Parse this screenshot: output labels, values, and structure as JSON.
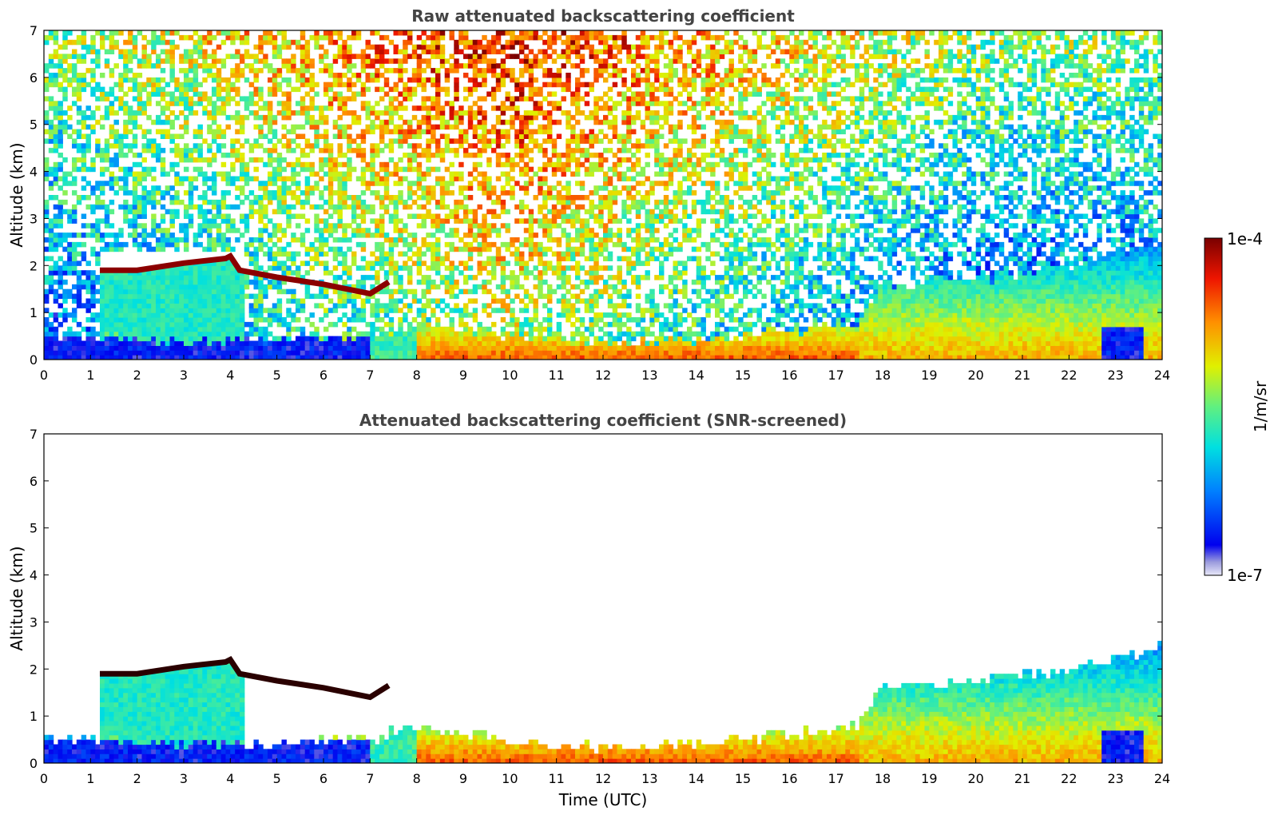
{
  "chart_data": [
    {
      "type": "heatmap",
      "title": "Raw attenuated backscattering coefficient",
      "ylabel": "Altitude (km)",
      "xlabel": "",
      "xlim": [
        0,
        24
      ],
      "ylim": [
        0,
        7
      ],
      "xticks": [
        0,
        1,
        2,
        3,
        4,
        5,
        6,
        7,
        8,
        9,
        10,
        11,
        12,
        13,
        14,
        15,
        16,
        17,
        18,
        19,
        20,
        21,
        22,
        23,
        24
      ],
      "yticks": [
        0,
        1,
        2,
        3,
        4,
        5,
        6,
        7
      ],
      "screened": false,
      "features": {
        "cloud_layer_km": [
          [
            1.2,
            1.9
          ],
          [
            2.0,
            1.9
          ],
          [
            3.0,
            2.05
          ],
          [
            3.9,
            2.15
          ],
          [
            4.0,
            2.2
          ],
          [
            4.2,
            1.9
          ],
          [
            5.0,
            1.75
          ],
          [
            6.0,
            1.6
          ],
          [
            7.0,
            1.4
          ],
          [
            7.4,
            1.65
          ]
        ],
        "boundary_layer_top_km": [
          [
            0,
            0.55
          ],
          [
            2,
            0.45
          ],
          [
            4,
            0.4
          ],
          [
            7,
            0.5
          ],
          [
            8,
            0.8
          ],
          [
            10,
            0.5
          ],
          [
            12,
            0.35
          ],
          [
            14,
            0.4
          ],
          [
            16,
            0.6
          ],
          [
            17.5,
            0.8
          ],
          [
            18,
            1.6
          ],
          [
            20,
            1.7
          ],
          [
            22,
            2.0
          ],
          [
            23.3,
            2.3
          ],
          [
            24,
            2.5
          ]
        ],
        "noise_level": "high at altitude"
      }
    },
    {
      "type": "heatmap",
      "title": "Attenuated backscattering coefficient (SNR-screened)",
      "ylabel": "Altitude (km)",
      "xlabel": "Time (UTC)",
      "xlim": [
        0,
        24
      ],
      "ylim": [
        0,
        7
      ],
      "xticks": [
        0,
        1,
        2,
        3,
        4,
        5,
        6,
        7,
        8,
        9,
        10,
        11,
        12,
        13,
        14,
        15,
        16,
        17,
        18,
        19,
        20,
        21,
        22,
        23,
        24
      ],
      "yticks": [
        0,
        1,
        2,
        3,
        4,
        5,
        6,
        7
      ],
      "screened": true,
      "features": {
        "cloud_layer_km": [
          [
            1.2,
            1.9
          ],
          [
            2.0,
            1.9
          ],
          [
            3.0,
            2.05
          ],
          [
            3.9,
            2.15
          ],
          [
            4.0,
            2.2
          ],
          [
            4.2,
            1.9
          ],
          [
            5.0,
            1.75
          ],
          [
            6.0,
            1.6
          ],
          [
            7.0,
            1.4
          ],
          [
            7.4,
            1.65
          ]
        ],
        "boundary_layer_top_km": [
          [
            0,
            0.55
          ],
          [
            2,
            0.45
          ],
          [
            4,
            0.4
          ],
          [
            7,
            0.5
          ],
          [
            8,
            0.8
          ],
          [
            10,
            0.5
          ],
          [
            12,
            0.35
          ],
          [
            14,
            0.4
          ],
          [
            16,
            0.6
          ],
          [
            17.5,
            0.8
          ],
          [
            18,
            1.6
          ],
          [
            20,
            1.7
          ],
          [
            22,
            2.0
          ],
          [
            23.3,
            2.3
          ],
          [
            24,
            2.5
          ]
        ],
        "noise_level": "screened"
      }
    }
  ],
  "colorbar": {
    "label": "1/m/sr",
    "max_label": "1e-4",
    "min_label": "1e-7",
    "scale": "log",
    "range": [
      1e-07,
      0.0001
    ],
    "colormap": "jet"
  }
}
